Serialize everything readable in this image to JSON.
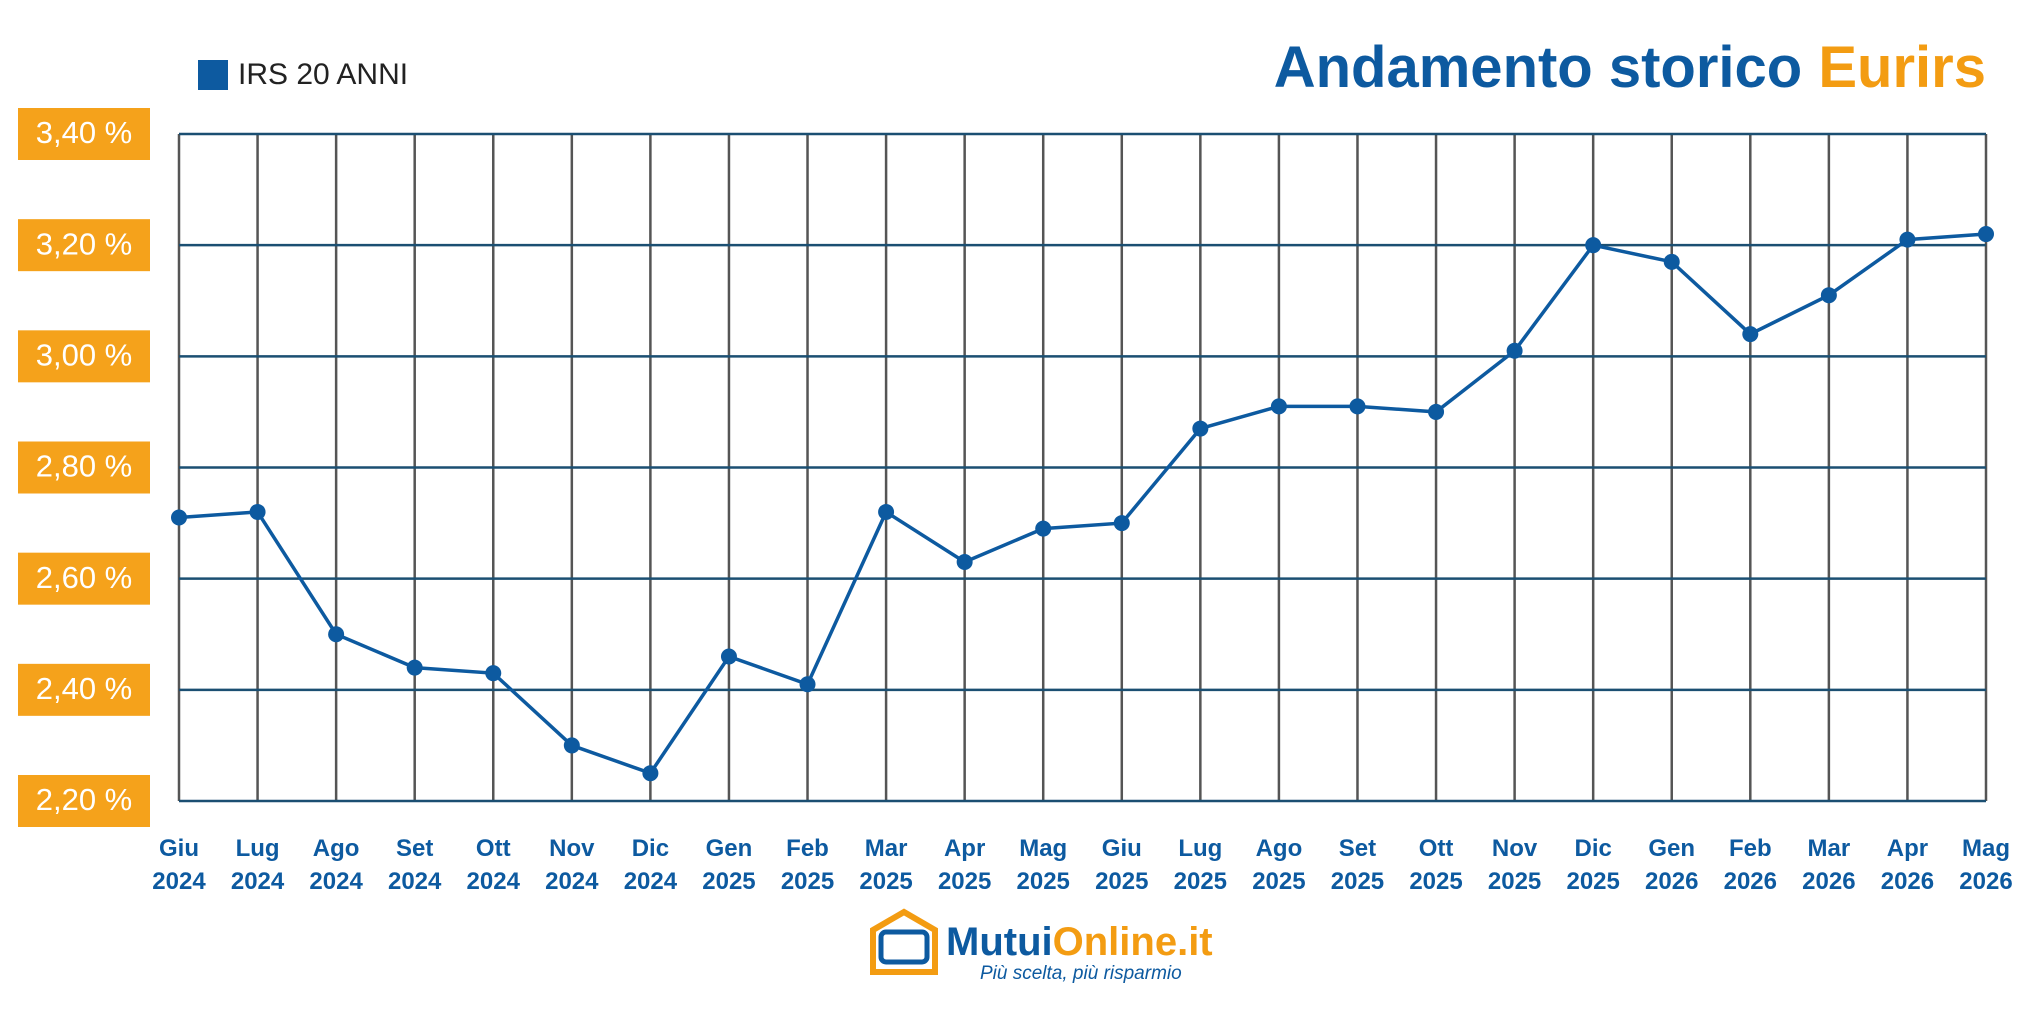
{
  "chart_data": {
    "type": "line",
    "title": "Andamento storico",
    "title_highlight": "Eurirs",
    "categories": [
      "Giu 2024",
      "Lug 2024",
      "Ago 2024",
      "Set 2024",
      "Ott 2024",
      "Nov 2024",
      "Dic 2024",
      "Gen 2025",
      "Feb 2025",
      "Mar 2025",
      "Apr 2025",
      "Mag 2025",
      "Giu 2025",
      "Lug 2025",
      "Ago 2025",
      "Set 2025",
      "Ott 2025",
      "Nov 2025",
      "Dic 2025",
      "Gen 2026",
      "Feb 2026",
      "Mar 2026",
      "Apr 2026",
      "Mag 2026"
    ],
    "series": [
      {
        "name": "IRS 20 ANNI",
        "color": "#0d5aa0",
        "values": [
          2.71,
          2.72,
          2.5,
          2.44,
          2.43,
          2.3,
          2.25,
          2.46,
          2.41,
          2.72,
          2.63,
          2.69,
          2.7,
          2.87,
          2.91,
          2.91,
          2.9,
          3.01,
          3.2,
          3.17,
          3.04,
          3.11,
          3.21,
          3.22
        ]
      }
    ],
    "ylim": [
      2.2,
      3.4
    ],
    "yticks": [
      {
        "value": 2.2,
        "label": "2,20 %"
      },
      {
        "value": 2.4,
        "label": "2,40 %"
      },
      {
        "value": 2.6,
        "label": "2,60 %"
      },
      {
        "value": 2.8,
        "label": "2,80 %"
      },
      {
        "value": 3.0,
        "label": "3,00 %"
      },
      {
        "value": 3.2,
        "label": "3,20 %"
      },
      {
        "value": 3.4,
        "label": "3,40 %"
      }
    ],
    "grid": true,
    "legend": "top-left"
  },
  "logo": {
    "brand": "Mutui",
    "brand_highlight": "Online.it",
    "tagline": "Più scelta, più risparmio"
  }
}
